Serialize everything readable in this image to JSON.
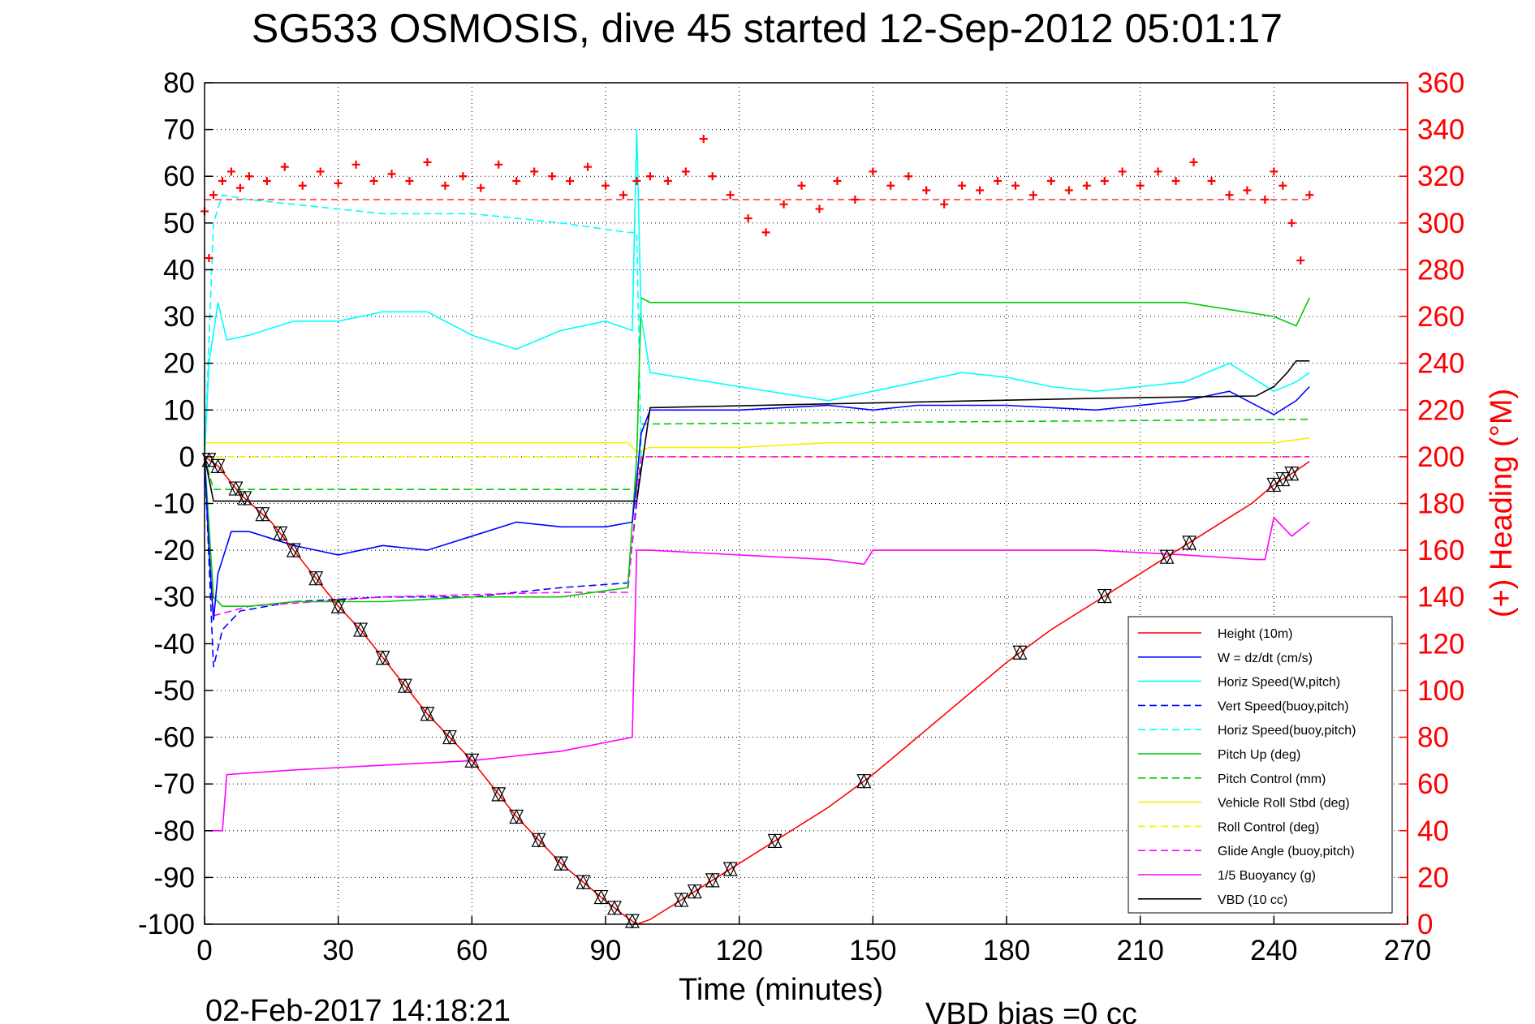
{
  "chart_data": {
    "type": "line",
    "title": "SG533 OSMOSIS, dive 45 started 12-Sep-2012 05:01:17",
    "xlabel": "Time (minutes)",
    "ylabel_right": "(+) Heading (°M)",
    "footer_date": "02-Feb-2017 14:18:21",
    "footer_bias": "VBD bias =0 cc",
    "xlim": [
      0,
      270
    ],
    "ylim": [
      -100,
      80
    ],
    "ylim_right": [
      0,
      360
    ],
    "xticks": [
      0,
      30,
      60,
      90,
      120,
      150,
      180,
      210,
      240,
      270
    ],
    "yticks": [
      -100,
      -90,
      -80,
      -70,
      -60,
      -50,
      -40,
      -30,
      -20,
      -10,
      0,
      10,
      20,
      30,
      40,
      50,
      60,
      70,
      80
    ],
    "yticks_right": [
      0,
      20,
      40,
      60,
      80,
      100,
      120,
      140,
      160,
      180,
      200,
      220,
      240,
      260,
      280,
      300,
      320,
      340,
      360
    ],
    "grid": true,
    "legend_position": "bottom-right",
    "series": [
      {
        "name": "Height (10m)",
        "color": "#ff0000",
        "dash": "solid",
        "x": [
          0,
          3,
          8,
          15,
          20,
          25,
          30,
          35,
          40,
          45,
          50,
          55,
          60,
          65,
          70,
          75,
          80,
          85,
          90,
          94,
          97,
          100,
          105,
          110,
          115,
          120,
          125,
          130,
          140,
          150,
          160,
          170,
          180,
          190,
          200,
          210,
          215,
          220,
          225,
          230,
          235,
          240,
          245,
          248
        ],
        "y": [
          0,
          -2,
          -8,
          -14,
          -20,
          -26,
          -32,
          -37,
          -43,
          -49,
          -55,
          -60,
          -65,
          -71,
          -77,
          -82,
          -87,
          -91,
          -95,
          -98,
          -100,
          -99,
          -96,
          -93,
          -90,
          -87,
          -84,
          -81,
          -75,
          -68,
          -60,
          -52,
          -44,
          -37,
          -31,
          -25,
          -22,
          -19,
          -16,
          -13,
          -10,
          -6,
          -3,
          -1
        ]
      },
      {
        "name": "W = dz/dt (cm/s)",
        "color": "#0000ff",
        "dash": "solid",
        "x": [
          0,
          1,
          2,
          3,
          4,
          6,
          10,
          20,
          30,
          40,
          50,
          60,
          70,
          80,
          90,
          96,
          97,
          98,
          100,
          120,
          140,
          150,
          160,
          180,
          200,
          220,
          230,
          240,
          245,
          248
        ],
        "y": [
          0,
          -20,
          -35,
          -25,
          -22,
          -16,
          -16,
          -19,
          -21,
          -19,
          -20,
          -17,
          -14,
          -15,
          -15,
          -14,
          -5,
          5,
          10,
          10,
          11,
          10,
          11,
          11,
          10,
          12,
          14,
          9,
          12,
          15
        ]
      },
      {
        "name": "Horiz Speed(W,pitch)",
        "color": "#00ffff",
        "dash": "solid",
        "x": [
          0,
          1,
          3,
          5,
          10,
          20,
          30,
          40,
          50,
          60,
          70,
          80,
          90,
          96,
          97,
          98,
          100,
          120,
          140,
          150,
          160,
          170,
          180,
          190,
          200,
          210,
          220,
          230,
          240,
          245,
          248
        ],
        "y": [
          0,
          20,
          33,
          25,
          26,
          29,
          29,
          31,
          31,
          26,
          23,
          27,
          29,
          27,
          70,
          30,
          18,
          15,
          12,
          14,
          16,
          18,
          17,
          15,
          14,
          15,
          16,
          20,
          14,
          16,
          18
        ]
      },
      {
        "name": "Vert Speed(buoy,pitch)",
        "color": "#0000ff",
        "dash": "dashed",
        "x": [
          0,
          2,
          4,
          8,
          20,
          40,
          60,
          80,
          95,
          97,
          98
        ],
        "y": [
          0,
          -45,
          -37,
          -33,
          -31,
          -30,
          -30,
          -28,
          -27,
          -10,
          0
        ]
      },
      {
        "name": "Horiz Speed(buoy,pitch)",
        "color": "#00ffff",
        "dash": "dashed",
        "x": [
          0,
          2,
          4,
          10,
          20,
          40,
          60,
          80,
          95,
          97,
          98
        ],
        "y": [
          0,
          50,
          56,
          55,
          54,
          52,
          52,
          50,
          48,
          48,
          0
        ]
      },
      {
        "name": "Pitch Up (deg)",
        "color": "#00cc00",
        "dash": "solid",
        "x": [
          0,
          2,
          4,
          10,
          20,
          40,
          60,
          80,
          95,
          97,
          98,
          100,
          120,
          140,
          160,
          180,
          200,
          220,
          240,
          245,
          248
        ],
        "y": [
          0,
          -30,
          -32,
          -32,
          -31,
          -31,
          -30,
          -30,
          -28,
          0,
          34,
          33,
          33,
          33,
          33,
          33,
          33,
          33,
          30,
          28,
          34
        ]
      },
      {
        "name": "Pitch Control (mm)",
        "color": "#00cc00",
        "dash": "dashed",
        "x": [
          0,
          2,
          95,
          97,
          98,
          248
        ],
        "y": [
          0,
          -7,
          -7,
          -7,
          7,
          8
        ]
      },
      {
        "name": "Vehicle Roll Stbd (deg)",
        "color": "#ffff00",
        "dash": "solid",
        "x": [
          0,
          5,
          20,
          40,
          60,
          80,
          95,
          97,
          100,
          120,
          140,
          160,
          180,
          200,
          220,
          240,
          248
        ],
        "y": [
          3,
          3,
          3,
          3,
          3,
          3,
          3,
          1,
          2,
          2,
          3,
          3,
          3,
          3,
          3,
          3,
          4
        ]
      },
      {
        "name": "Roll Control (deg)",
        "color": "#ffff00",
        "dash": "dashed",
        "x": [
          0,
          96,
          97,
          248
        ],
        "y": [
          0,
          0,
          0,
          0
        ]
      },
      {
        "name": "Glide Angle (buoy,pitch)",
        "color": "#ff00ff",
        "dash": "dashed",
        "x": [
          0,
          2,
          10,
          40,
          80,
          95,
          97,
          98,
          248
        ],
        "y": [
          0,
          -34,
          -32,
          -30,
          -29,
          -29,
          -8,
          0,
          0
        ]
      },
      {
        "name": "1/5 Buoyancy (g)",
        "color": "#ff00ff",
        "dash": "solid",
        "x": [
          0,
          1,
          4,
          5,
          20,
          40,
          60,
          80,
          96,
          97,
          100,
          120,
          140,
          148,
          150,
          160,
          180,
          200,
          220,
          236,
          238,
          240,
          244,
          248
        ],
        "y": [
          -80,
          -80,
          -80,
          -68,
          -67,
          -66,
          -65,
          -63,
          -60,
          -20,
          -20,
          -21,
          -22,
          -23,
          -20,
          -20,
          -20,
          -20,
          -21,
          -22,
          -22,
          -13,
          -17,
          -14
        ]
      },
      {
        "name": "VBD (10 cc)",
        "color": "#000000",
        "dash": "solid",
        "x": [
          0,
          2,
          97,
          100,
          150,
          200,
          236,
          240,
          243,
          245,
          248
        ],
        "y": [
          0,
          -9.5,
          -9.5,
          10.5,
          11.5,
          12.5,
          13,
          15,
          18,
          20.5,
          20.5
        ]
      }
    ],
    "heading_series": {
      "name": "(+) Heading (°M)",
      "color": "#ff0000",
      "marker": "+",
      "x": [
        0,
        1,
        2,
        4,
        6,
        8,
        10,
        14,
        18,
        22,
        26,
        30,
        34,
        38,
        42,
        46,
        50,
        54,
        58,
        62,
        66,
        70,
        74,
        78,
        82,
        86,
        90,
        94,
        97,
        100,
        104,
        108,
        112,
        114,
        118,
        122,
        126,
        130,
        134,
        138,
        142,
        146,
        150,
        154,
        158,
        162,
        166,
        170,
        174,
        178,
        182,
        186,
        190,
        194,
        198,
        202,
        206,
        210,
        214,
        218,
        222,
        226,
        230,
        234,
        238,
        240,
        242,
        244,
        246,
        248
      ],
      "y": [
        305,
        285,
        312,
        318,
        322,
        315,
        320,
        318,
        324,
        316,
        322,
        317,
        325,
        318,
        321,
        318,
        326,
        316,
        320,
        315,
        325,
        318,
        322,
        320,
        318,
        324,
        316,
        312,
        318,
        320,
        318,
        322,
        336,
        320,
        312,
        302,
        296,
        308,
        316,
        306,
        318,
        310,
        322,
        316,
        320,
        314,
        308,
        316,
        314,
        318,
        316,
        312,
        318,
        314,
        316,
        318,
        322,
        316,
        322,
        318,
        326,
        318,
        312,
        314,
        310,
        322,
        316,
        300,
        284,
        312
      ]
    },
    "heading_reference": 310,
    "markers_x": [
      1,
      3,
      7,
      9,
      13,
      17,
      20,
      25,
      30,
      35,
      40,
      45,
      50,
      55,
      60,
      66,
      70,
      75,
      80,
      85,
      89,
      92,
      96,
      107,
      110,
      114,
      118,
      128,
      148,
      183,
      202,
      216,
      221,
      240,
      242,
      244
    ],
    "legend": [
      "Height (10m)",
      "W = dz/dt (cm/s)",
      "Horiz Speed(W,pitch)",
      "Vert Speed(buoy,pitch)",
      "Horiz Speed(buoy,pitch)",
      "Pitch Up (deg)",
      "Pitch Control (mm)",
      "Vehicle Roll Stbd (deg)",
      "Roll Control (deg)",
      "Glide Angle (buoy,pitch)",
      "1/5 Buoyancy (g)",
      "VBD (10 cc)"
    ]
  }
}
